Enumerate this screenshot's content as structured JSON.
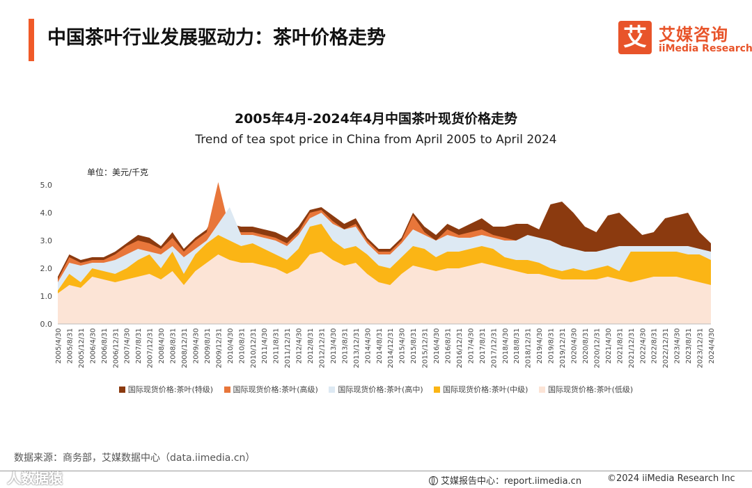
{
  "header": {
    "title": "中国茶叶行业发展驱动力：茶叶价格走势",
    "logo_mark": "艾",
    "logo_cn": "艾媒咨询",
    "logo_en": "iiMedia Research"
  },
  "chart_data": {
    "type": "area",
    "title": "2005年4月-2024年4月中国茶叶现货价格走势",
    "subtitle": "Trend of tea spot price in China from April 2005 to April 2024",
    "unit": "单位：美元/千克",
    "ylim": [
      0,
      5.0
    ],
    "yticks": [
      "0.0",
      "1.0",
      "2.0",
      "3.0",
      "4.0",
      "5.0"
    ],
    "grid": false,
    "legend_position": "bottom",
    "x": [
      "2005/4/30",
      "2005/8/31",
      "2005/12/31",
      "2006/4/30",
      "2006/8/31",
      "2006/12/31",
      "2007/4/30",
      "2007/8/31",
      "2007/12/31",
      "2008/4/30",
      "2008/8/31",
      "2008/12/31",
      "2009/4/30",
      "2009/8/31",
      "2009/12/31",
      "2010/4/30",
      "2010/8/31",
      "2010/12/31",
      "2011/4/30",
      "2011/8/31",
      "2011/12/31",
      "2012/4/30",
      "2012/8/31",
      "2012/12/31",
      "2013/4/30",
      "2013/8/31",
      "2013/12/31",
      "2014/4/30",
      "2014/8/31",
      "2014/12/31",
      "2015/4/30",
      "2015/8/31",
      "2015/12/31",
      "2016/4/30",
      "2016/8/31",
      "2016/12/31",
      "2017/4/30",
      "2017/8/31",
      "2017/12/31",
      "2018/4/30",
      "2018/8/31",
      "2018/12/31",
      "2019/4/30",
      "2019/8/31",
      "2019/12/31",
      "2020/4/30",
      "2020/8/31",
      "2020/12/31",
      "2021/4/30",
      "2021/8/31",
      "2021/12/31",
      "2022/4/30",
      "2022/8/31",
      "2022/12/31",
      "2023/4/30",
      "2023/8/31",
      "2023/12/31",
      "2024/4/30"
    ],
    "series": [
      {
        "name": "国际现货价格:茶叶(特级)",
        "color": "#8b3a0f",
        "values": [
          1.7,
          2.5,
          2.3,
          2.4,
          2.4,
          2.6,
          2.9,
          3.2,
          3.1,
          2.8,
          3.3,
          2.7,
          3.1,
          3.4,
          4.3,
          3.6,
          3.5,
          3.5,
          3.4,
          3.3,
          3.1,
          3.5,
          4.1,
          4.2,
          3.9,
          3.6,
          3.8,
          3.1,
          2.7,
          2.7,
          3.1,
          4.0,
          3.5,
          3.2,
          3.6,
          3.4,
          3.6,
          3.8,
          3.5,
          3.5,
          3.6,
          3.6,
          3.4,
          4.3,
          4.4,
          4.0,
          3.5,
          3.3,
          3.9,
          4.0,
          3.6,
          3.2,
          3.3,
          3.8,
          3.9,
          4.0,
          3.3,
          2.9
        ]
      },
      {
        "name": "国际现货价格:茶叶(高级)",
        "color": "#e8763a",
        "values": [
          1.6,
          2.4,
          2.2,
          2.3,
          2.3,
          2.5,
          2.8,
          3.0,
          2.9,
          2.7,
          3.1,
          2.6,
          3.0,
          3.3,
          5.1,
          3.4,
          3.3,
          3.3,
          3.2,
          3.1,
          2.9,
          3.3,
          4.0,
          4.1,
          3.7,
          3.4,
          3.6,
          3.0,
          2.6,
          2.6,
          3.0,
          3.9,
          3.3,
          3.0,
          3.4,
          3.2,
          3.3,
          3.4,
          3.2,
          3.1,
          3.0,
          3.1,
          2.9,
          2.7,
          2.5,
          2.6,
          2.5,
          2.5,
          2.6,
          2.6,
          2.6,
          2.6,
          2.6,
          2.7,
          2.7,
          2.7,
          2.6,
          2.5
        ]
      },
      {
        "name": "国际现货价格:茶叶(高中)",
        "color": "#dde9f3",
        "values": [
          1.5,
          2.2,
          2.1,
          2.2,
          2.2,
          2.3,
          2.5,
          2.7,
          2.6,
          2.5,
          2.8,
          2.4,
          2.7,
          3.0,
          3.6,
          4.2,
          3.2,
          3.2,
          3.1,
          3.0,
          2.8,
          3.2,
          3.8,
          4.0,
          3.6,
          3.4,
          3.5,
          2.9,
          2.5,
          2.5,
          2.9,
          3.4,
          3.2,
          3.0,
          3.2,
          3.1,
          3.1,
          3.2,
          3.1,
          3.0,
          3.0,
          3.2,
          3.1,
          3.0,
          2.8,
          2.7,
          2.6,
          2.6,
          2.7,
          2.8,
          2.8,
          2.8,
          2.8,
          2.8,
          2.8,
          2.8,
          2.7,
          2.6
        ]
      },
      {
        "name": "国际现货价格:茶叶(中级)",
        "color": "#fbb515",
        "values": [
          1.2,
          1.8,
          1.5,
          2.0,
          1.9,
          1.8,
          2.0,
          2.3,
          2.5,
          2.0,
          2.6,
          1.8,
          2.5,
          2.9,
          3.2,
          3.0,
          2.8,
          2.9,
          2.7,
          2.5,
          2.3,
          2.7,
          3.5,
          3.6,
          3.0,
          2.7,
          2.8,
          2.5,
          2.1,
          2.0,
          2.4,
          2.8,
          2.7,
          2.4,
          2.6,
          2.6,
          2.7,
          2.8,
          2.7,
          2.4,
          2.3,
          2.3,
          2.2,
          2.0,
          1.9,
          2.0,
          1.9,
          2.0,
          2.1,
          1.9,
          2.6,
          2.6,
          2.6,
          2.6,
          2.6,
          2.5,
          2.5,
          2.3
        ]
      },
      {
        "name": "国际现货价格:茶叶(低级)",
        "color": "#fce4d6",
        "values": [
          1.1,
          1.4,
          1.3,
          1.7,
          1.6,
          1.5,
          1.6,
          1.7,
          1.8,
          1.6,
          1.9,
          1.4,
          1.9,
          2.2,
          2.5,
          2.3,
          2.2,
          2.2,
          2.1,
          2.0,
          1.8,
          2.0,
          2.5,
          2.6,
          2.3,
          2.1,
          2.2,
          1.8,
          1.5,
          1.4,
          1.8,
          2.1,
          2.0,
          1.9,
          2.0,
          2.0,
          2.1,
          2.2,
          2.1,
          2.0,
          1.9,
          1.8,
          1.8,
          1.7,
          1.6,
          1.6,
          1.6,
          1.6,
          1.7,
          1.6,
          1.5,
          1.6,
          1.7,
          1.7,
          1.7,
          1.6,
          1.5,
          1.4
        ]
      }
    ]
  },
  "source_note": "数据来源：商务部，艾媒数据中心（data.iimedia.cn）",
  "footer": {
    "watermark": "人数据猿",
    "report_center": "艾媒报告中心：report.iimedia.cn",
    "copyright": "©2024  iiMedia Research  Inc"
  }
}
